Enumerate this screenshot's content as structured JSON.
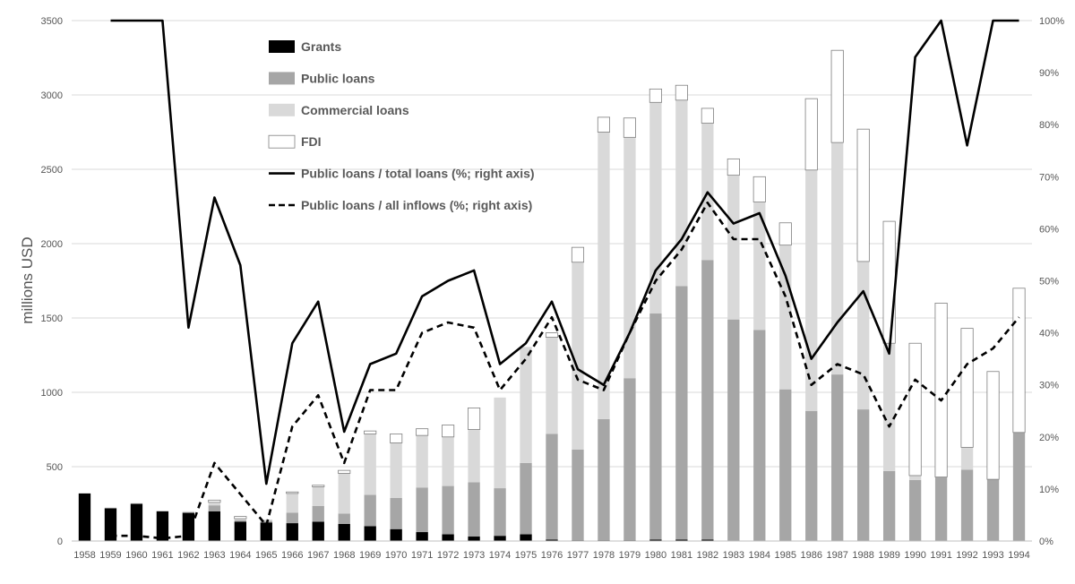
{
  "chart_data": {
    "type": "bar",
    "ylabel": "millions USD",
    "ylim": [
      0,
      3500
    ],
    "y_ticks": [
      "0",
      "500",
      "1000",
      "1500",
      "2000",
      "2500",
      "3000",
      "3500"
    ],
    "y2lim": [
      0,
      100
    ],
    "y2_ticks": [
      "0%",
      "10%",
      "20%",
      "30%",
      "40%",
      "50%",
      "60%",
      "70%",
      "80%",
      "90%",
      "100%"
    ],
    "grid": true,
    "stacked": true,
    "legend_position": "top-left",
    "categories": [
      "1958",
      "1959",
      "1960",
      "1961",
      "1962",
      "1963",
      "1964",
      "1965",
      "1966",
      "1967",
      "1968",
      "1969",
      "1970",
      "1971",
      "1972",
      "1973",
      "1974",
      "1975",
      "1976",
      "1977",
      "1978",
      "1979",
      "1980",
      "1981",
      "1982",
      "1983",
      "1984",
      "1985",
      "1986",
      "1987",
      "1988",
      "1989",
      "1990",
      "1991",
      "1992",
      "1993",
      "1994"
    ],
    "series": [
      {
        "name": "Grants",
        "kind": "bar",
        "axis": "left",
        "color": "#000000",
        "values": [
          320,
          220,
          250,
          200,
          190,
          200,
          130,
          125,
          120,
          130,
          115,
          100,
          80,
          60,
          45,
          30,
          35,
          45,
          10,
          5,
          5,
          5,
          10,
          10,
          10,
          0,
          0,
          0,
          0,
          0,
          0,
          0,
          0,
          0,
          0,
          0,
          0
        ]
      },
      {
        "name": "Public loans",
        "kind": "bar",
        "axis": "left",
        "color": "#a6a6a6",
        "values": [
          0,
          0,
          0,
          0,
          0,
          40,
          10,
          10,
          70,
          105,
          70,
          210,
          210,
          300,
          325,
          365,
          320,
          480,
          710,
          610,
          815,
          1090,
          1520,
          1705,
          1880,
          1490,
          1420,
          1020,
          875,
          1120,
          885,
          470,
          410,
          430,
          480,
          415,
          730
        ]
      },
      {
        "name": "Commercial loans",
        "kind": "bar",
        "axis": "left",
        "color": "#d9d9d9",
        "values": [
          0,
          5,
          5,
          5,
          10,
          20,
          10,
          10,
          130,
          130,
          270,
          410,
          370,
          350,
          330,
          355,
          610,
          780,
          650,
          1260,
          1930,
          1620,
          1420,
          1250,
          920,
          970,
          860,
          970,
          1620,
          1560,
          995,
          860,
          30,
          0,
          150,
          0,
          0
        ]
      },
      {
        "name": "FDI",
        "kind": "bar",
        "axis": "left",
        "color": "#ffffff",
        "values": [
          0,
          0,
          0,
          0,
          0,
          15,
          15,
          0,
          10,
          10,
          20,
          20,
          60,
          45,
          80,
          145,
          0,
          0,
          30,
          100,
          100,
          130,
          90,
          100,
          100,
          110,
          170,
          150,
          480,
          620,
          890,
          820,
          890,
          1170,
          800,
          725,
          970
        ]
      },
      {
        "name": "Public loans / total loans (%; right axis)",
        "kind": "line",
        "axis": "right",
        "color": "#000000",
        "dash": "solid",
        "values": [
          null,
          100,
          100,
          100,
          41,
          66,
          53,
          11,
          38,
          46,
          21,
          34,
          36,
          47,
          50,
          52,
          34,
          38,
          46,
          33,
          30,
          40,
          52,
          58,
          67,
          61,
          63,
          51,
          35,
          42,
          48,
          36,
          93,
          100,
          76,
          100,
          100
        ]
      },
      {
        "name": "Public loans / all inflows (%; right axis)",
        "kind": "line",
        "axis": "right",
        "color": "#000000",
        "dash": "dashed",
        "values": [
          null,
          1,
          1,
          0.5,
          1,
          15,
          9,
          3,
          22,
          28,
          15,
          29,
          29,
          40,
          42,
          41,
          29,
          35,
          43,
          31,
          29,
          40,
          50,
          56,
          65,
          58,
          58,
          47,
          30,
          34,
          32,
          22,
          31,
          27,
          34,
          37,
          43
        ]
      }
    ]
  }
}
